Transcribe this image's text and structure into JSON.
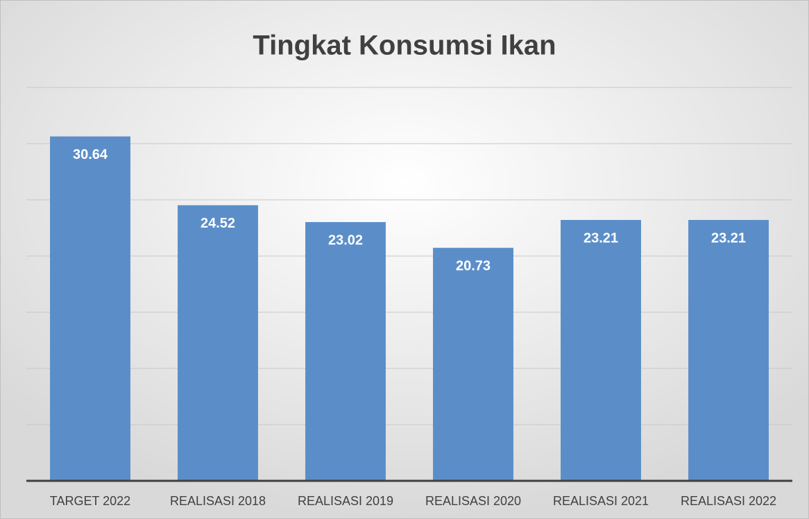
{
  "chart_data": {
    "type": "bar",
    "title": "Tingkat Konsumsi Ikan",
    "categories": [
      "TARGET 2022",
      "REALISASI 2018",
      "REALISASI 2019",
      "REALISASI 2020",
      "REALISASI 2021",
      "REALISASI 2022"
    ],
    "values": [
      30.64,
      24.52,
      23.02,
      20.73,
      23.21,
      23.21
    ],
    "color": "#5b8ec9",
    "ylim": [
      0,
      35
    ],
    "yticks": [
      0,
      5,
      10,
      15,
      20,
      25,
      30,
      35
    ],
    "grid": true
  }
}
